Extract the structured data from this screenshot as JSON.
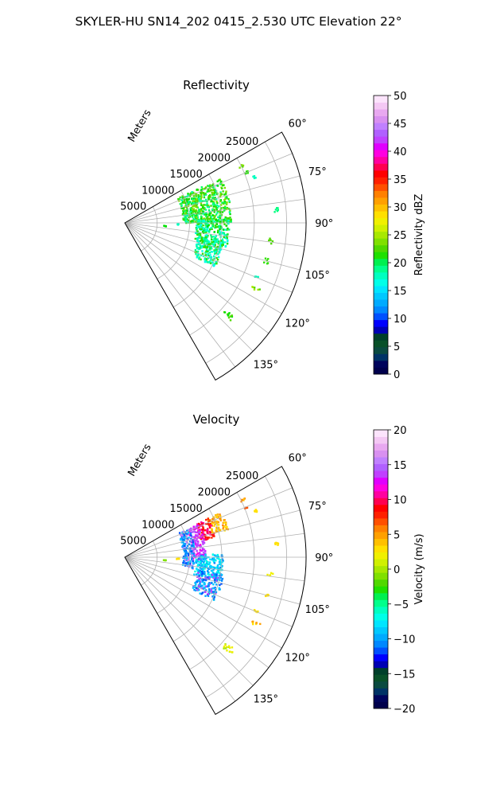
{
  "figure": {
    "suptitle": "SKYLER-HU  SN14_202  0415_2.530 UTC Elevation 22°"
  },
  "chart_data": [
    {
      "type": "heatmap",
      "projection": "polar-sector",
      "title": "Reflectivity",
      "range_label": "Meters",
      "range_ticks": [
        5000,
        10000,
        15000,
        20000,
        25000
      ],
      "range_tick_labels": [
        "5000",
        "10000",
        "15000",
        "20000",
        "25000"
      ],
      "rmax": 28000,
      "azimuth_range": [
        60,
        150
      ],
      "azimuth_ticks": [
        60,
        75,
        90,
        105,
        120,
        135
      ],
      "azimuth_tick_labels": [
        "60°",
        "75°",
        "90°",
        "105°",
        "120°",
        "135°"
      ],
      "grid": true,
      "colorbar": {
        "label": "Reflectivity dBZ",
        "range": [
          0,
          50
        ],
        "ticks": [
          0,
          5,
          10,
          15,
          20,
          25,
          30,
          35,
          40,
          45,
          50
        ],
        "tick_labels": [
          "0",
          "5",
          "10",
          "15",
          "20",
          "25",
          "30",
          "35",
          "40",
          "45",
          "50"
        ],
        "colors": [
          "#00004c",
          "#00045c",
          "#003366",
          "#0a4a40",
          "#085028",
          "#003f2a",
          "#0000b4",
          "#0000ff",
          "#0050ff",
          "#0088ff",
          "#00aaff",
          "#00c8ff",
          "#00e5ff",
          "#00ffe8",
          "#00ffc0",
          "#00ff8c",
          "#00f050",
          "#1ee000",
          "#50d800",
          "#80e000",
          "#a8e800",
          "#d0f000",
          "#f0f000",
          "#ffe000",
          "#ffc000",
          "#ffa000",
          "#ff8000",
          "#ff5000",
          "#ff2000",
          "#ff0000",
          "#ff0050",
          "#ff00a0",
          "#ff00e0",
          "#e000ff",
          "#c040ff",
          "#b060ff",
          "#c080ff",
          "#d890f0",
          "#e8a8f0",
          "#f4c8f4",
          "#fce4fc"
        ]
      },
      "echo_clusters": [
        {
          "az": [
            63.5,
            64.5
          ],
          "range": [
            19500,
            20800
          ],
          "colors": [
            "#50d800",
            "#80e000"
          ]
        },
        {
          "az": [
            67,
            68
          ],
          "range": [
            19800,
            20600
          ],
          "colors": [
            "#20e000"
          ]
        },
        {
          "az": [
            70,
            71
          ],
          "range": [
            21000,
            21600
          ],
          "colors": [
            "#00ffc0"
          ]
        },
        {
          "az": [
            65,
            90
          ],
          "range": [
            9000,
            16500
          ],
          "colors": [
            "#00e000",
            "#30e000",
            "#50d800",
            "#00ffa0",
            "#00ff60",
            "#80e000"
          ]
        },
        {
          "az": [
            88,
            104
          ],
          "range": [
            11000,
            16200
          ],
          "colors": [
            "#00ff80",
            "#00e000",
            "#00ffc0",
            "#30e000",
            "#00ffe0"
          ]
        },
        {
          "az": [
            100,
            116
          ],
          "range": [
            11500,
            15500
          ],
          "colors": [
            "#00ffc0",
            "#00ffe8",
            "#00ff90",
            "#30e000"
          ]
        },
        {
          "az": [
            84,
            86
          ],
          "range": [
            23000,
            23800
          ],
          "colors": [
            "#00ff80"
          ]
        },
        {
          "az": [
            96,
            98
          ],
          "range": [
            22000,
            23000
          ],
          "colors": [
            "#50d800"
          ]
        },
        {
          "az": [
            104,
            106
          ],
          "range": [
            22300,
            23000
          ],
          "colors": [
            "#30e000"
          ]
        },
        {
          "az": [
            112,
            113
          ],
          "range": [
            21500,
            22200
          ],
          "colors": [
            "#00ffc0"
          ]
        },
        {
          "az": [
            116,
            118
          ],
          "range": [
            22000,
            23300
          ],
          "colors": [
            "#a8e800",
            "#50d800"
          ]
        },
        {
          "az": [
            130,
            133
          ],
          "range": [
            20500,
            22200
          ],
          "colors": [
            "#00e000",
            "#50d800"
          ]
        },
        {
          "az": [
            94,
            95
          ],
          "range": [
            5800,
            6400
          ],
          "colors": [
            "#00e000"
          ]
        },
        {
          "az": [
            91,
            92
          ],
          "range": [
            8000,
            8400
          ],
          "colors": [
            "#00ffc0"
          ]
        }
      ]
    },
    {
      "type": "heatmap",
      "projection": "polar-sector",
      "title": "Velocity",
      "range_label": "Meters",
      "range_ticks": [
        5000,
        10000,
        15000,
        20000,
        25000
      ],
      "range_tick_labels": [
        "5000",
        "10000",
        "15000",
        "20000",
        "25000"
      ],
      "rmax": 28000,
      "azimuth_range": [
        60,
        150
      ],
      "azimuth_ticks": [
        60,
        75,
        90,
        105,
        120,
        135
      ],
      "azimuth_tick_labels": [
        "60°",
        "75°",
        "90°",
        "105°",
        "120°",
        "135°"
      ],
      "grid": true,
      "colorbar": {
        "label": "Velocity (m/s)",
        "range": [
          -20,
          20
        ],
        "ticks": [
          -20,
          -15,
          -10,
          -5,
          0,
          5,
          10,
          15,
          20
        ],
        "tick_labels": [
          "−20",
          "−15",
          "−10",
          "−5",
          "0",
          "5",
          "10",
          "15",
          "20"
        ],
        "colors": [
          "#00004c",
          "#00045c",
          "#003366",
          "#0a4a40",
          "#085028",
          "#003f2a",
          "#0000b4",
          "#0000ff",
          "#0050ff",
          "#0088ff",
          "#00aaff",
          "#00c8ff",
          "#00e5ff",
          "#00ffe8",
          "#00ffc0",
          "#00ff8c",
          "#00f050",
          "#1ee000",
          "#50d800",
          "#80e000",
          "#a8e800",
          "#d0f000",
          "#f0f000",
          "#ffe000",
          "#ffc000",
          "#ffa000",
          "#ff8000",
          "#ff5000",
          "#ff2000",
          "#ff0000",
          "#ff0050",
          "#ff00a0",
          "#ff00e0",
          "#e000ff",
          "#c040ff",
          "#b060ff",
          "#c080ff",
          "#d890f0",
          "#e8a8f0",
          "#f4c8f4",
          "#fce4fc"
        ]
      },
      "echo_clusters": [
        {
          "az": [
            63.5,
            64.5
          ],
          "range": [
            19500,
            20800
          ],
          "colors": [
            "#ffc000",
            "#ff8000"
          ]
        },
        {
          "az": [
            67,
            68
          ],
          "range": [
            19800,
            20600
          ],
          "colors": [
            "#ff5000"
          ]
        },
        {
          "az": [
            70,
            71
          ],
          "range": [
            21000,
            21600
          ],
          "colors": [
            "#ffe000"
          ]
        },
        {
          "az": [
            65,
            75
          ],
          "range": [
            14000,
            16500
          ],
          "colors": [
            "#ffe000",
            "#ffc000",
            "#ffa000",
            "#ff8000"
          ]
        },
        {
          "az": [
            65,
            78
          ],
          "range": [
            12000,
            14200
          ],
          "colors": [
            "#ff0000",
            "#ff2000",
            "#ff0050",
            "#ff00a0"
          ]
        },
        {
          "az": [
            66,
            92
          ],
          "range": [
            10500,
            12500
          ],
          "colors": [
            "#ff00e0",
            "#e000ff",
            "#c040ff",
            "#b060ff"
          ]
        },
        {
          "az": [
            66,
            100
          ],
          "range": [
            9000,
            10800
          ],
          "colors": [
            "#00aaff",
            "#0088ff",
            "#c080ff",
            "#00c8ff",
            "#0050ff"
          ]
        },
        {
          "az": [
            88,
            104
          ],
          "range": [
            11000,
            15200
          ],
          "colors": [
            "#00c8ff",
            "#00e5ff",
            "#00aaff",
            "#0088ff",
            "#00ffe8"
          ]
        },
        {
          "az": [
            100,
            116
          ],
          "range": [
            11500,
            15500
          ],
          "colors": [
            "#0088ff",
            "#00aaff",
            "#0050ff",
            "#00c8ff",
            "#c040ff"
          ]
        },
        {
          "az": [
            84,
            86
          ],
          "range": [
            23000,
            23800
          ],
          "colors": [
            "#ffe000"
          ]
        },
        {
          "az": [
            96,
            98
          ],
          "range": [
            22000,
            23000
          ],
          "colors": [
            "#f0f000"
          ]
        },
        {
          "az": [
            104,
            106
          ],
          "range": [
            22300,
            23000
          ],
          "colors": [
            "#ffe000"
          ]
        },
        {
          "az": [
            112,
            113
          ],
          "range": [
            21500,
            22200
          ],
          "colors": [
            "#ffe000"
          ]
        },
        {
          "az": [
            116,
            118
          ],
          "range": [
            22000,
            23300
          ],
          "colors": [
            "#ffa000",
            "#ffe000"
          ]
        },
        {
          "az": [
            130,
            133
          ],
          "range": [
            20500,
            22200
          ],
          "colors": [
            "#a8e800",
            "#f0f000"
          ]
        },
        {
          "az": [
            94,
            95
          ],
          "range": [
            5800,
            6400
          ],
          "colors": [
            "#80e000"
          ]
        },
        {
          "az": [
            91,
            92
          ],
          "range": [
            8000,
            8400
          ],
          "colors": [
            "#ffe000"
          ]
        }
      ]
    }
  ]
}
